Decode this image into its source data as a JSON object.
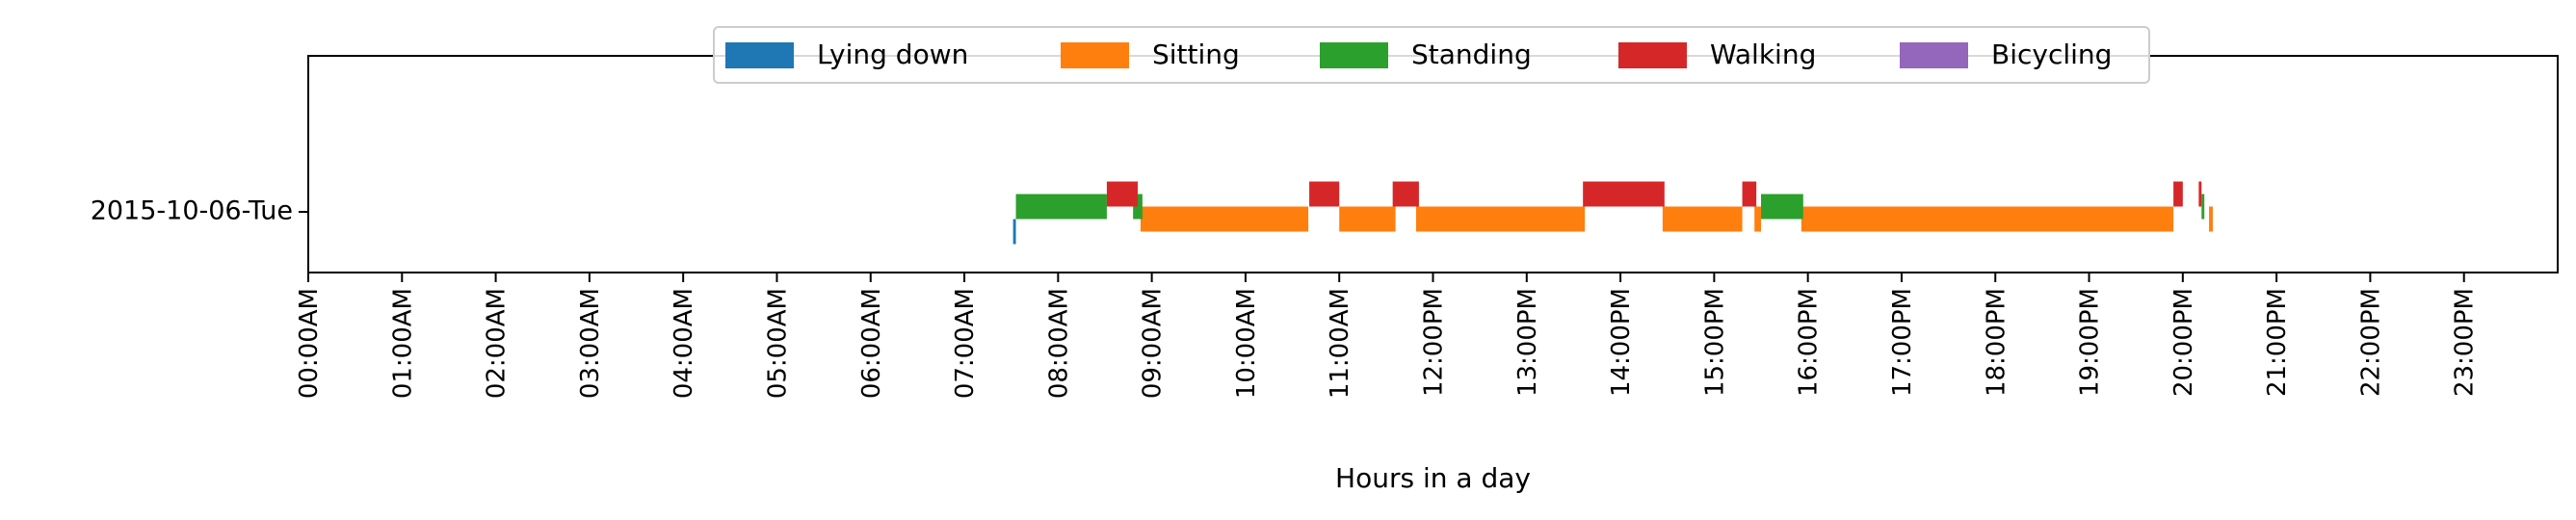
{
  "chart_data": {
    "type": "timeline",
    "title": "",
    "xlabel": "Hours in a day",
    "ylabel": "",
    "xlim": [
      0,
      24
    ],
    "x_unit": "hours",
    "grid": false,
    "legend_position": "top-center",
    "rows": [
      "2015-10-06-Tue"
    ],
    "x_tick_labels": [
      "00:00AM",
      "01:00AM",
      "02:00AM",
      "03:00AM",
      "04:00AM",
      "05:00AM",
      "06:00AM",
      "07:00AM",
      "08:00AM",
      "09:00AM",
      "10:00AM",
      "11:00AM",
      "12:00PM",
      "13:00PM",
      "14:00PM",
      "15:00PM",
      "16:00PM",
      "17:00PM",
      "18:00PM",
      "19:00PM",
      "20:00PM",
      "21:00PM",
      "22:00PM",
      "23:00PM"
    ],
    "series": [
      {
        "name": "Lying down",
        "color": "#1f77b4",
        "lane": 0,
        "intervals": [
          [
            7.52,
            7.55
          ]
        ]
      },
      {
        "name": "Sitting",
        "color": "#ff7f0e",
        "lane": 1,
        "intervals": [
          [
            8.88,
            10.67
          ],
          [
            11.0,
            11.6
          ],
          [
            11.82,
            13.62
          ],
          [
            14.45,
            15.3
          ],
          [
            15.43,
            15.5
          ],
          [
            15.93,
            19.9
          ],
          [
            20.28,
            20.32
          ]
        ]
      },
      {
        "name": "Standing",
        "color": "#2ca02c",
        "lane": 2,
        "intervals": [
          [
            7.55,
            8.52
          ],
          [
            8.8,
            8.9
          ],
          [
            15.5,
            15.95
          ],
          [
            20.2,
            20.23
          ]
        ]
      },
      {
        "name": "Walking",
        "color": "#d62728",
        "lane": 3,
        "intervals": [
          [
            8.52,
            8.85
          ],
          [
            10.68,
            11.0
          ],
          [
            11.57,
            11.85
          ],
          [
            13.6,
            14.47
          ],
          [
            15.3,
            15.45
          ],
          [
            19.9,
            20.0
          ],
          [
            20.17,
            20.2
          ]
        ]
      },
      {
        "name": "Bicycling",
        "color": "#9467bd",
        "lane": 4,
        "intervals": []
      }
    ]
  }
}
